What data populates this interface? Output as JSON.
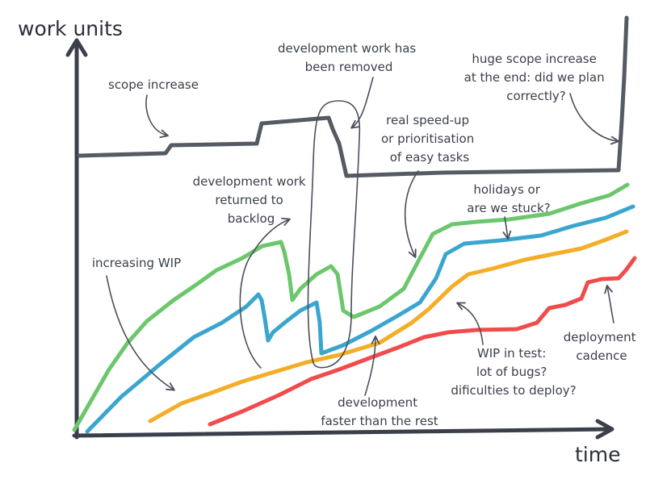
{
  "axes": {
    "y_label": "work units",
    "x_label": "time"
  },
  "annotations": {
    "scope_increase": [
      "scope increase"
    ],
    "dev_removed": [
      "development work has",
      "been removed"
    ],
    "huge_scope": [
      "huge scope increase",
      "at the end: did we plan",
      "correctly?"
    ],
    "speed_up": [
      "real speed-up",
      "or prioritisation",
      "of easy tasks"
    ],
    "returned_backlog": [
      "development work",
      "returned to",
      "backlog"
    ],
    "holidays": [
      "holidays or",
      "are we stuck?"
    ],
    "increasing_wip": [
      "increasing WIP"
    ],
    "deployment_cadence": [
      "deployment",
      "cadence"
    ],
    "wip_test": [
      "WIP in test:",
      "lot of bugs?",
      "dificulties to deploy?"
    ],
    "dev_faster": [
      "development",
      "faster than the rest"
    ]
  },
  "series": [
    {
      "key": "scope",
      "color": "#555a63"
    },
    {
      "key": "green",
      "color": "#6cc76c"
    },
    {
      "key": "blue",
      "color": "#3aa6cf"
    },
    {
      "key": "orange",
      "color": "#f4ad26"
    },
    {
      "key": "red",
      "color": "#f14b4b"
    }
  ],
  "colors": {
    "axis": "#3a3f4a",
    "text": "#3a3f4a",
    "arrow": "#4a4f5a",
    "background": "#ffffff"
  }
}
